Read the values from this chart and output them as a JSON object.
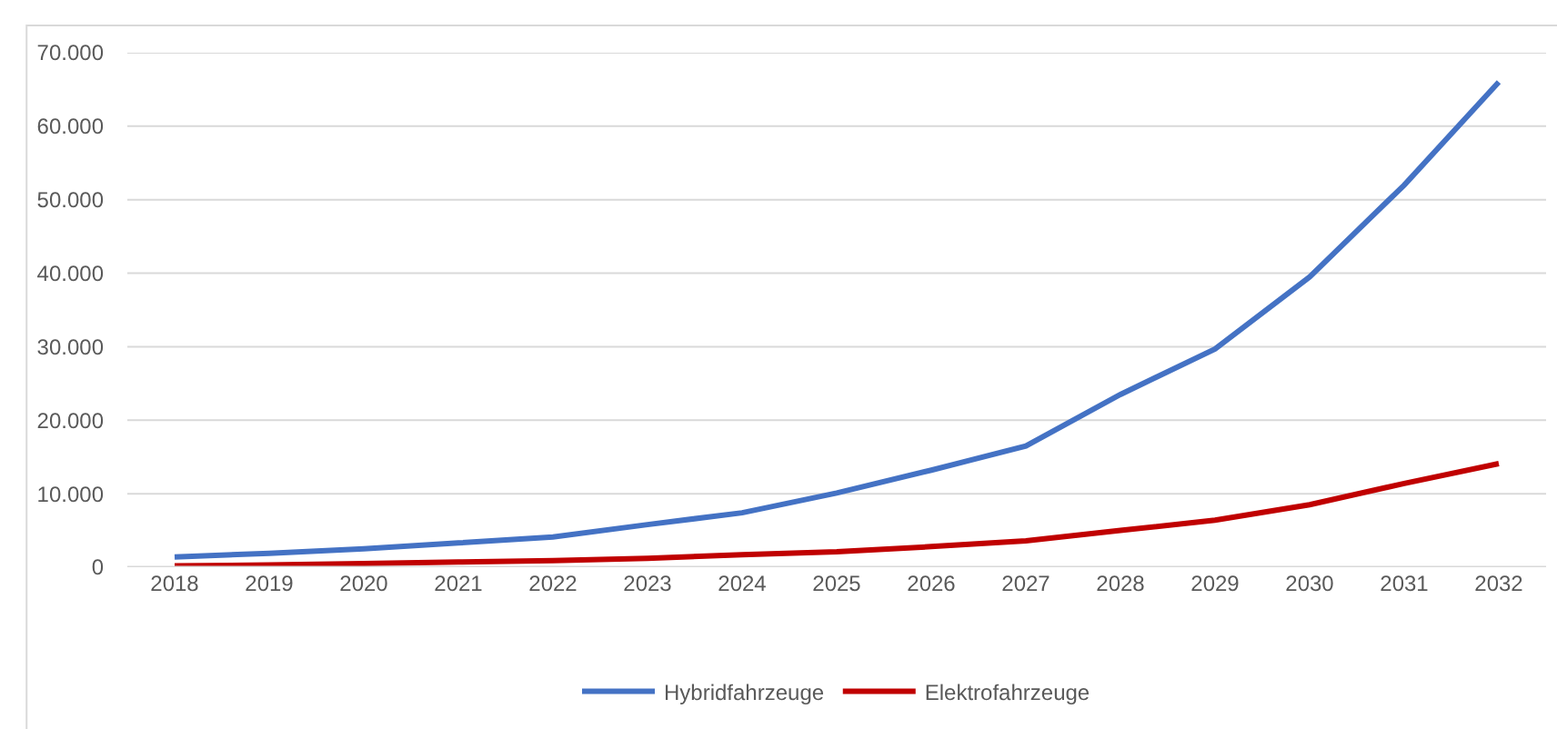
{
  "chart_data": {
    "type": "line",
    "categories": [
      "2018",
      "2019",
      "2020",
      "2021",
      "2022",
      "2023",
      "2024",
      "2025",
      "2026",
      "2027",
      "2028",
      "2029",
      "2030",
      "2031",
      "2032"
    ],
    "series": [
      {
        "name": "Hybridfahrzeuge",
        "color": "#4472c4",
        "values": [
          1400,
          1900,
          2500,
          3300,
          4100,
          5800,
          7400,
          10100,
          13200,
          16500,
          23500,
          29700,
          39500,
          52000,
          66000
        ]
      },
      {
        "name": "Elektrofahrzeuge",
        "color": "#c00000",
        "values": [
          200,
          300,
          500,
          700,
          900,
          1200,
          1700,
          2100,
          2800,
          3600,
          5000,
          6400,
          8500,
          11400,
          14100
        ]
      }
    ],
    "ylim": [
      0,
      70000
    ],
    "yticks": [
      0,
      {
        "value": 10000,
        "label": "10.000"
      },
      {
        "value": 20000,
        "label": "20.000"
      },
      {
        "value": 30000,
        "label": "30.000"
      },
      {
        "value": 40000,
        "label": "40.000"
      },
      {
        "value": 50000,
        "label": "50.000"
      },
      {
        "value": 60000,
        "label": "60.000"
      },
      {
        "value": 70000,
        "label": "70.000"
      }
    ],
    "grid": "y",
    "legend": "bottom",
    "marker": "none",
    "line_style": "solid"
  }
}
